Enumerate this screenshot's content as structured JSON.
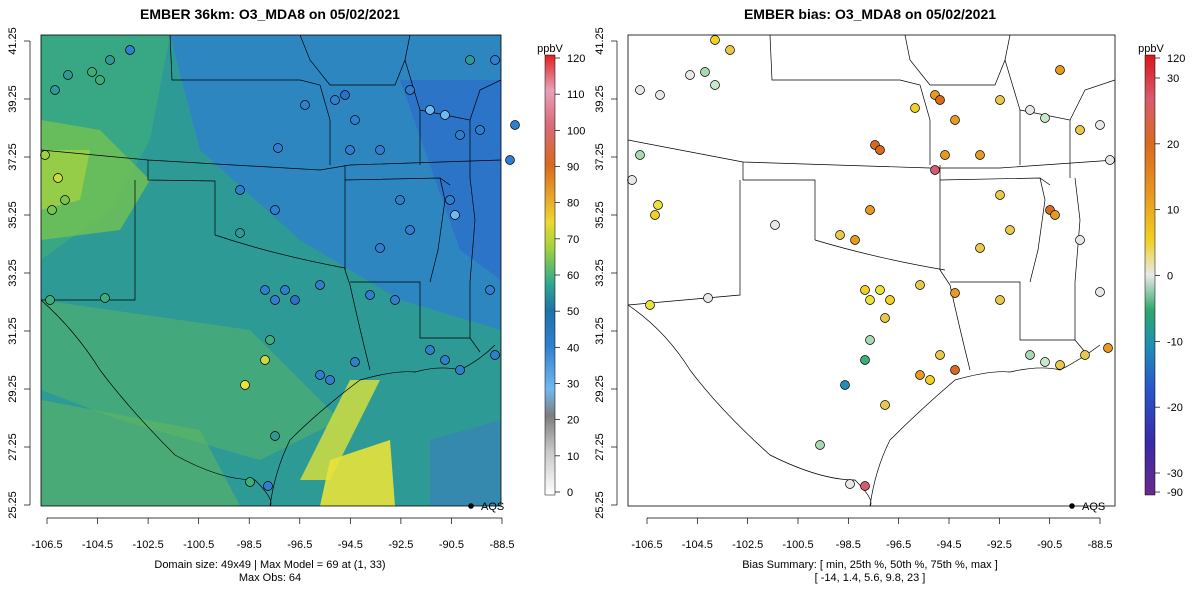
{
  "left_panel": {
    "title": "EMBER 36km: O3_MDA8 on 05/02/2021",
    "colorbar_unit": "ppbV",
    "colorbar_ticks": [
      "0",
      "10",
      "20",
      "30",
      "40",
      "50",
      "60",
      "70",
      "80",
      "90",
      "100",
      "110",
      "120"
    ],
    "legend_label": "AQS",
    "caption_line1": "Domain size: 49x49 | Max Model = 69 at (1, 33)",
    "caption_line2": "Max Obs: 64"
  },
  "right_panel": {
    "title": "EMBER bias: O3_MDA8 on 05/02/2021",
    "colorbar_unit": "ppbV",
    "colorbar_ticks": [
      "-90",
      "-30",
      "-20",
      "-10",
      "0",
      "10",
      "20",
      "30",
      "120"
    ],
    "legend_label": "AQS",
    "caption_line1": "Bias Summary: [ min, 25th %, 50th %, 75th %, max ]",
    "caption_line2": "[ -14,   1.4,   5.6,   9.8,   23 ]"
  },
  "x_ticks": [
    "-106.5",
    "-104.5",
    "-102.5",
    "-100.5",
    "-98.5",
    "-96.5",
    "-94.5",
    "-92.5",
    "-90.5",
    "-88.5"
  ],
  "y_ticks": [
    "25.25",
    "27.25",
    "29.25",
    "31.25",
    "33.25",
    "35.25",
    "37.25",
    "39.25",
    "41.25"
  ],
  "bias_summary": {
    "min": -14,
    "p25": 1.4,
    "median": 5.6,
    "p75": 9.8,
    "max": 23
  },
  "colors": {
    "model_low": "#2f7fcf",
    "model_mid": "#2ea88f",
    "model_high": "#f2e03a",
    "bias_negative": "#2a9d8f",
    "bias_neutral": "#e6e6e6",
    "bias_positive": "#e08a1a",
    "bias_extreme": "#cc2222"
  }
}
